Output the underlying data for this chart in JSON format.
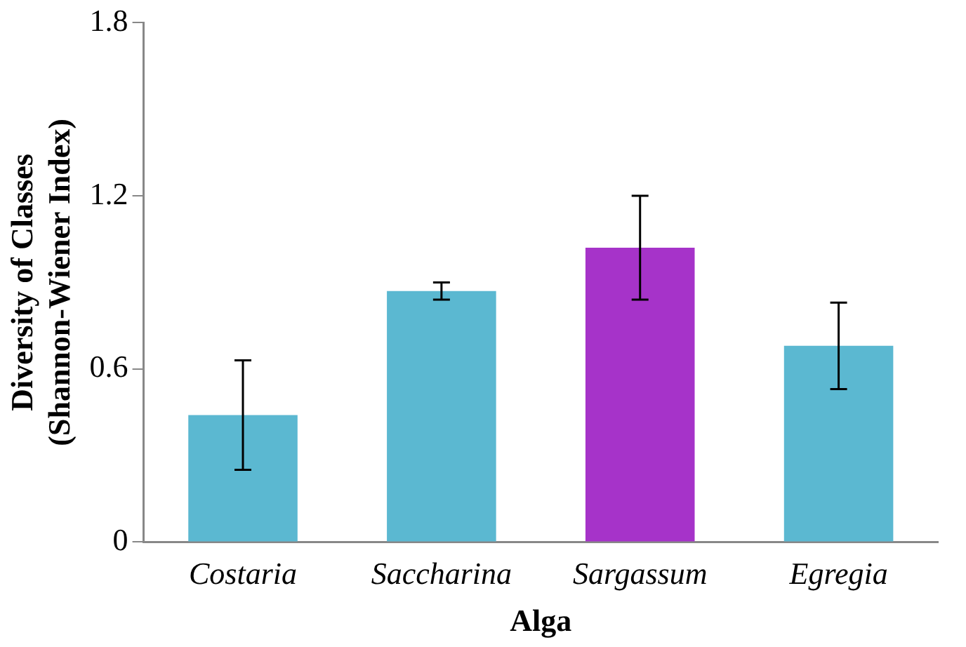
{
  "chart_data": {
    "type": "bar",
    "xlabel": "Alga",
    "ylabel": "Diversity of Classes\n(Shannon-Wiener Index)",
    "categories": [
      "Costaria",
      "Saccharina",
      "Sargassum",
      "Egregia"
    ],
    "values": [
      0.44,
      0.87,
      1.02,
      0.68
    ],
    "colors": [
      "#5bb8d1",
      "#5bb8d1",
      "#a633c9",
      "#5bb8d1"
    ],
    "errors": [
      0.19,
      0.03,
      0.18,
      0.15
    ],
    "ylim": [
      0,
      1.8
    ],
    "yticks": [
      0,
      0.6,
      1.2,
      1.8
    ],
    "grid": false,
    "legend": false
  }
}
